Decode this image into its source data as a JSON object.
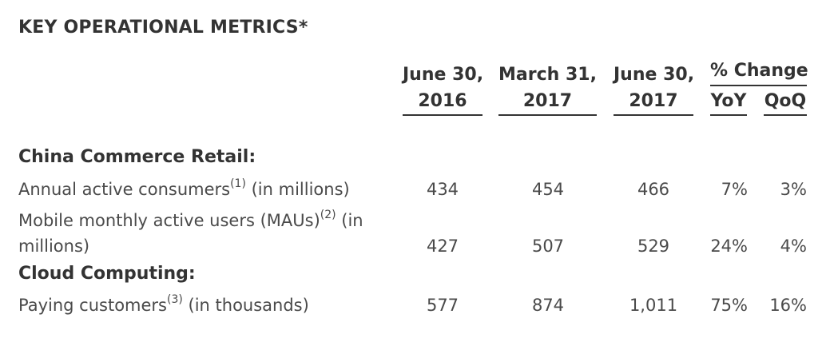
{
  "title": "KEY OPERATIONAL METRICS*",
  "headers": {
    "col1": [
      "June 30,",
      "2016"
    ],
    "col2": [
      "March 31,",
      "2017"
    ],
    "col3": [
      "June 30,",
      "2017"
    ],
    "pct_change": "% Change",
    "yoy": "YoY",
    "qoq": "QoQ"
  },
  "sections": [
    {
      "heading": "China Commerce Retail:",
      "rows": [
        {
          "label": "Annual active consumers",
          "footnote": "(1)",
          "label_suffix": " (in millions)",
          "values": [
            "434",
            "454",
            "466",
            "7%",
            "3%"
          ]
        },
        {
          "label_line1": "Mobile monthly active users (MAUs)",
          "footnote": "(2)",
          "label_line1_suffix": " (in",
          "label_line2": "millions)",
          "values": [
            "427",
            "507",
            "529",
            "24%",
            "4%"
          ]
        }
      ]
    },
    {
      "heading": "Cloud Computing:",
      "rows": [
        {
          "label": "Paying customers",
          "footnote": "(3)",
          "label_suffix": " (in thousands)",
          "values": [
            "577",
            "874",
            "1,011",
            "75%",
            "16%"
          ]
        }
      ]
    }
  ]
}
